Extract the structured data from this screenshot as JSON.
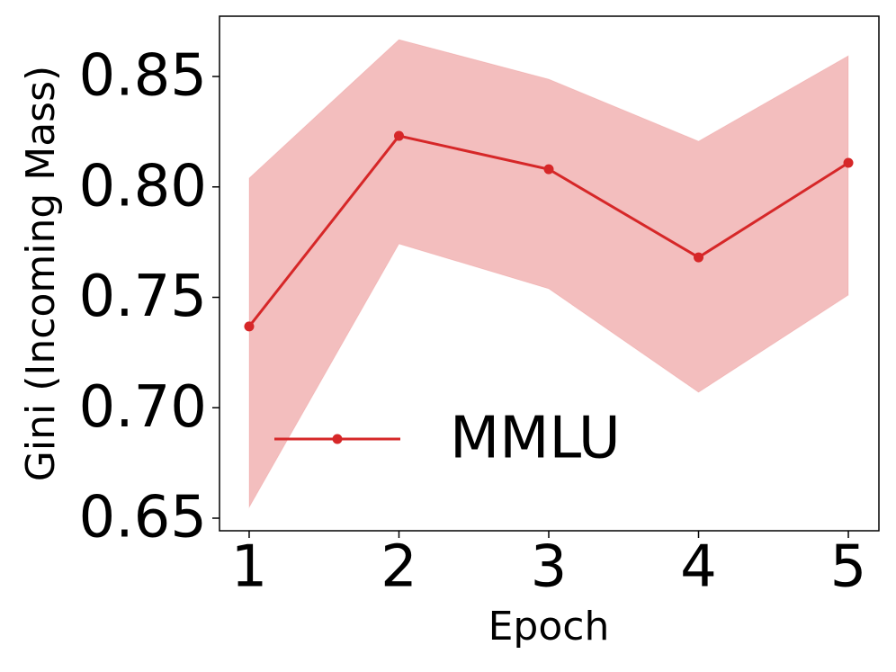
{
  "chart_data": {
    "type": "line",
    "x_label": "Epoch",
    "y_label": "Gini (Incoming Mass)",
    "x": [
      1,
      2,
      3,
      4,
      5
    ],
    "series": [
      {
        "name": "MMLU",
        "color": "#d62728",
        "values": [
          0.7368,
          0.8231,
          0.808,
          0.7681,
          0.8109
        ],
        "upper": [
          0.804,
          0.8667,
          0.8488,
          0.8207,
          0.8594
        ],
        "lower": [
          0.6549,
          0.7742,
          0.7539,
          0.707,
          0.751
        ]
      }
    ],
    "xlim": [
      0.802,
      5.204
    ],
    "xticks": [
      1,
      2,
      3,
      4,
      5
    ],
    "ylim": [
      0.6443,
      0.8773
    ],
    "yticks": [
      0.65,
      {
        "value": 0.7,
        "label": "0.70"
      },
      0.75,
      {
        "value": 0.8,
        "label": "0.80"
      },
      0.85
    ],
    "grid": false,
    "legend": "lower left"
  }
}
